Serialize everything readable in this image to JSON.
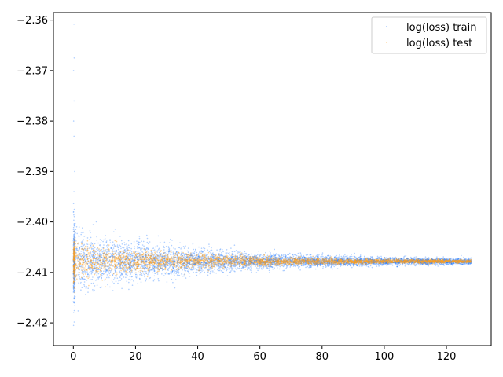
{
  "chart_data": {
    "type": "scatter",
    "title": "",
    "xlabel": "",
    "ylabel": "",
    "xlim": [
      -6.4,
      134.4
    ],
    "ylim": [
      -2.4245,
      -2.3585
    ],
    "xticks": [
      0,
      20,
      40,
      60,
      80,
      100,
      120
    ],
    "yticks": [
      -2.42,
      -2.41,
      -2.4,
      -2.39,
      -2.38,
      -2.37,
      -2.36
    ],
    "ytick_labels": [
      "−2.42",
      "−2.41",
      "−2.40",
      "−2.39",
      "−2.38",
      "−2.37",
      "−2.36"
    ],
    "grid": false,
    "legend_position": "top-right",
    "series": [
      {
        "name": "log(loss) train",
        "color": "#1f77ff",
        "x_range": [
          0,
          128
        ],
        "center": -2.4078,
        "spread_at_start": 0.003,
        "spread_at_end": 0.0002,
        "early_outliers_y": [
          -2.3608,
          -2.3675,
          -2.37,
          -2.376,
          -2.38,
          -2.383,
          -2.39,
          -2.394,
          -2.398,
          -2.415,
          -2.418,
          -2.4205
        ]
      },
      {
        "name": "log(loss) test",
        "color": "#ff9f1c",
        "x_range": [
          0,
          128
        ],
        "center": -2.4078,
        "spread_at_start": 0.0018,
        "spread_at_end": 0.0001
      }
    ]
  }
}
